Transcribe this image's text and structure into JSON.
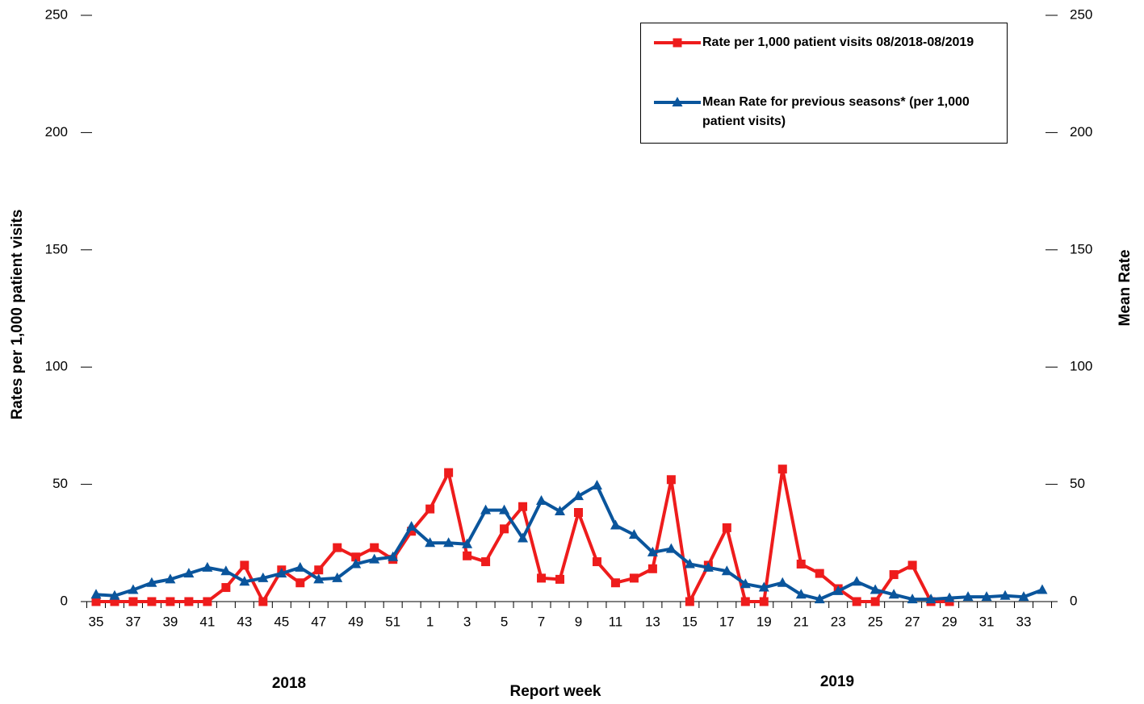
{
  "chart_data": {
    "type": "line",
    "categories": [
      "35",
      null,
      "37",
      null,
      "39",
      null,
      "41",
      null,
      "43",
      null,
      "45",
      null,
      "47",
      null,
      "49",
      null,
      "51",
      null,
      "1",
      null,
      "3",
      null,
      "5",
      null,
      "7",
      null,
      "9",
      null,
      "11",
      null,
      "13",
      null,
      "15",
      null,
      "17",
      null,
      "19",
      null,
      "21",
      null,
      "23",
      null,
      "25",
      null,
      "27",
      null,
      "29",
      null,
      "31",
      null,
      "33",
      null
    ],
    "series": [
      {
        "name": "Rate per 1,000 patient visits 08/2018-08/2019",
        "color": "#ee1c1c",
        "marker": "square",
        "values": [
          0,
          0,
          0,
          0,
          0,
          0,
          0,
          6,
          15.5,
          0,
          13.5,
          8,
          13.5,
          23,
          19,
          23,
          18,
          30,
          39.5,
          55,
          19.5,
          17,
          31,
          40.5,
          10,
          9.5,
          38,
          17,
          8,
          10,
          14,
          52,
          0,
          15.5,
          31.5,
          0,
          0,
          56.5,
          16,
          12,
          5.5,
          0,
          0,
          11.5,
          15.5,
          0,
          0,
          null,
          null,
          null,
          null,
          null
        ]
      },
      {
        "name": "Mean Rate for previous seasons* (per 1,000 patient visits)",
        "color": "#0a559c",
        "marker": "triangle",
        "axis": "y2",
        "values": [
          3,
          2.5,
          5,
          8,
          9.5,
          12,
          14.5,
          13,
          8.5,
          10,
          12,
          14.5,
          9.5,
          10,
          16,
          18,
          19,
          32,
          25,
          25,
          24.5,
          39,
          39,
          27,
          43,
          38.5,
          45,
          49.5,
          32.5,
          28.5,
          21,
          22.5,
          16,
          14.5,
          13,
          7.5,
          6,
          8,
          3,
          1,
          4.5,
          8.5,
          5,
          3,
          1,
          1,
          1.5,
          2,
          2,
          2.5,
          2,
          5
        ]
      }
    ],
    "ylim": [
      0,
      250
    ],
    "yticks": [
      0,
      50,
      100,
      150,
      200,
      250
    ],
    "y2lim": [
      0,
      250
    ],
    "y2ticks": [
      0,
      50,
      100,
      150,
      200,
      250
    ],
    "y_label": "Rates per 1,000 patient visits",
    "y2_label": "Mean Rate",
    "x_label": "Report week",
    "annotations": [
      "2018",
      "2019"
    ],
    "legend": "top-right"
  }
}
